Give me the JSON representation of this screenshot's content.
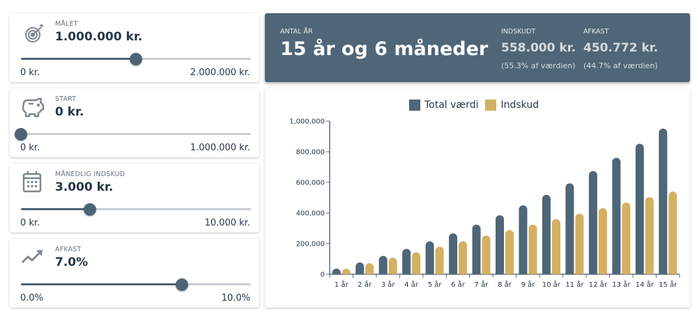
{
  "inputs": [
    {
      "id": "goal",
      "icon": "target-icon",
      "label": "MÅLET",
      "value": "1.000.000 kr.",
      "min": "0 kr.",
      "max": "2.000.000 kr.",
      "percent": 50
    },
    {
      "id": "start",
      "icon": "piggy-bank-icon",
      "label": "START",
      "value": "0 kr.",
      "min": "0 kr.",
      "max": "1.000.000 kr.",
      "percent": 0
    },
    {
      "id": "monthly",
      "icon": "calendar-icon",
      "label": "MÅNEDLIG INDSKUD",
      "value": "3.000 kr.",
      "min": "0 kr.",
      "max": "10.000 kr.",
      "percent": 30
    },
    {
      "id": "return",
      "icon": "trending-up-icon",
      "label": "AFKAST",
      "value": "7.0%",
      "min": "0.0%",
      "max": "10.0%",
      "percent": 70
    }
  ],
  "summary": {
    "years_label": "ANTAL ÅR",
    "years_value": "15 år og 6 måneder",
    "deposit_label": "INDSKUDT",
    "deposit_value": "558.000 kr.",
    "deposit_share": "(55.3% af værdien)",
    "return_label": "AFKAST",
    "return_value": "450.772 kr.",
    "return_share": "(44.7% af værdien)"
  },
  "colors": {
    "total": "#4e6677",
    "deposit": "#d4b062",
    "header_bg": "#4e6677"
  },
  "chart_data": {
    "type": "bar",
    "title": "",
    "xlabel": "",
    "ylabel": "",
    "legend": [
      "Total værdi",
      "Indskud"
    ],
    "legend_position": "top",
    "categories": [
      "1 år",
      "2 år",
      "3 år",
      "4 år",
      "5 år",
      "6 år",
      "7 år",
      "8 år",
      "9 år",
      "10 år",
      "11 år",
      "12 år",
      "13 år",
      "14 år",
      "15 år"
    ],
    "series": [
      {
        "name": "Total værdi",
        "values": [
          37000,
          77000,
          120000,
          166000,
          215000,
          267000,
          324000,
          385000,
          450000,
          519000,
          594000,
          674000,
          760000,
          852000,
          951000
        ]
      },
      {
        "name": "Indskud",
        "values": [
          36000,
          72000,
          108000,
          144000,
          180000,
          216000,
          252000,
          288000,
          324000,
          360000,
          396000,
          432000,
          468000,
          504000,
          540000
        ]
      }
    ],
    "yticks": [
      "0",
      "200,000",
      "400,000",
      "600,000",
      "800,000",
      "1,000,000"
    ],
    "ylim": [
      0,
      1000000
    ],
    "grid": false
  }
}
